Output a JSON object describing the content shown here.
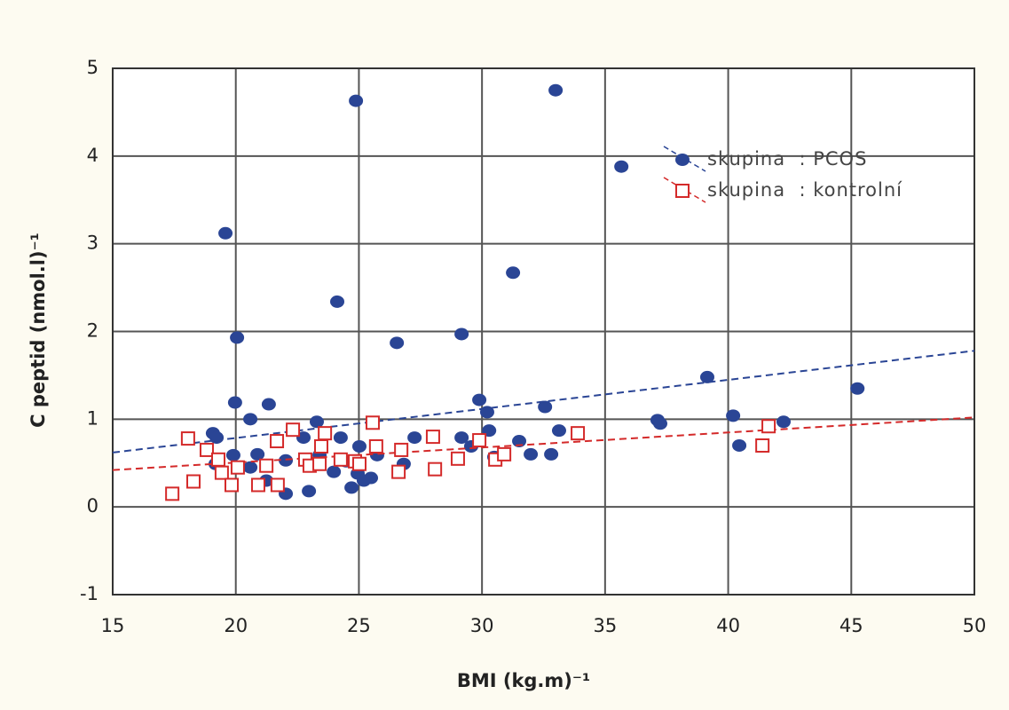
{
  "chart_data": {
    "type": "scatter",
    "x_label": "BMI (kg.m)⁻¹",
    "y_label": "C peptid (nmol.l)⁻¹",
    "xlim": [
      15,
      50
    ],
    "ylim": [
      -1,
      5
    ],
    "xticks": [
      15,
      20,
      25,
      30,
      35,
      40,
      45,
      50
    ],
    "yticks": [
      -1,
      0,
      1,
      2,
      3,
      4,
      5
    ],
    "grid": true,
    "legend": "upper right",
    "series": [
      {
        "name": "skupina  : PCOS",
        "color": "#2a4595",
        "marker": "circle",
        "x": [
          24.88,
          32.99,
          35.66,
          19.58,
          31.26,
          24.12,
          20.05,
          26.54,
          29.17,
          39.15,
          45.25,
          19.97,
          21.34,
          29.89,
          30.21,
          32.56,
          20.59,
          23.29,
          37.13,
          37.24,
          40.2,
          42.25,
          19.07,
          19.22,
          33.13,
          22.75,
          24.26,
          25.02,
          27.26,
          29.17,
          29.56,
          30.29,
          31.51,
          40.45,
          19.9,
          20.88,
          22.03,
          23.4,
          23.98,
          24.48,
          31.98,
          32.81,
          19.18,
          20.59,
          21.24,
          24.95,
          25.49,
          25.74,
          26.82,
          30.5,
          22.03,
          22.97,
          24.7,
          25.2
        ],
        "values": [
          4.63,
          4.75,
          3.88,
          3.12,
          2.67,
          2.34,
          1.93,
          1.87,
          1.97,
          1.48,
          1.35,
          1.19,
          1.17,
          1.22,
          1.08,
          1.14,
          1.0,
          0.97,
          0.99,
          0.95,
          1.04,
          0.97,
          0.84,
          0.79,
          0.87,
          0.79,
          0.79,
          0.69,
          0.79,
          0.79,
          0.69,
          0.87,
          0.75,
          0.7,
          0.59,
          0.6,
          0.53,
          0.59,
          0.4,
          0.52,
          0.6,
          0.6,
          0.49,
          0.45,
          0.3,
          0.38,
          0.33,
          0.59,
          0.49,
          0.57,
          0.15,
          0.18,
          0.22,
          0.3
        ],
        "fit": {
          "x": [
            15,
            50
          ],
          "values": [
            0.62,
            1.78
          ]
        }
      },
      {
        "name": "skupina  : kontrolní",
        "color": "#d42a2a",
        "marker": "square",
        "x": [
          18.06,
          18.82,
          19.29,
          19.43,
          19.83,
          18.28,
          17.42,
          20.08,
          20.91,
          21.24,
          21.67,
          21.7,
          22.32,
          22.82,
          23.0,
          23.62,
          23.47,
          23.4,
          24.26,
          24.84,
          25.02,
          25.56,
          25.7,
          26.61,
          26.72,
          28.01,
          28.09,
          29.02,
          29.89,
          30.54,
          30.9,
          33.89,
          41.39,
          41.64
        ],
        "values": [
          0.78,
          0.65,
          0.54,
          0.39,
          0.25,
          0.29,
          0.15,
          0.45,
          0.25,
          0.47,
          0.75,
          0.25,
          0.88,
          0.54,
          0.47,
          0.84,
          0.69,
          0.49,
          0.54,
          0.52,
          0.49,
          0.96,
          0.69,
          0.4,
          0.65,
          0.8,
          0.43,
          0.55,
          0.76,
          0.54,
          0.6,
          0.84,
          0.7,
          0.92
        ],
        "fit": {
          "x": [
            15,
            50
          ],
          "values": [
            0.42,
            1.02
          ]
        }
      }
    ]
  }
}
